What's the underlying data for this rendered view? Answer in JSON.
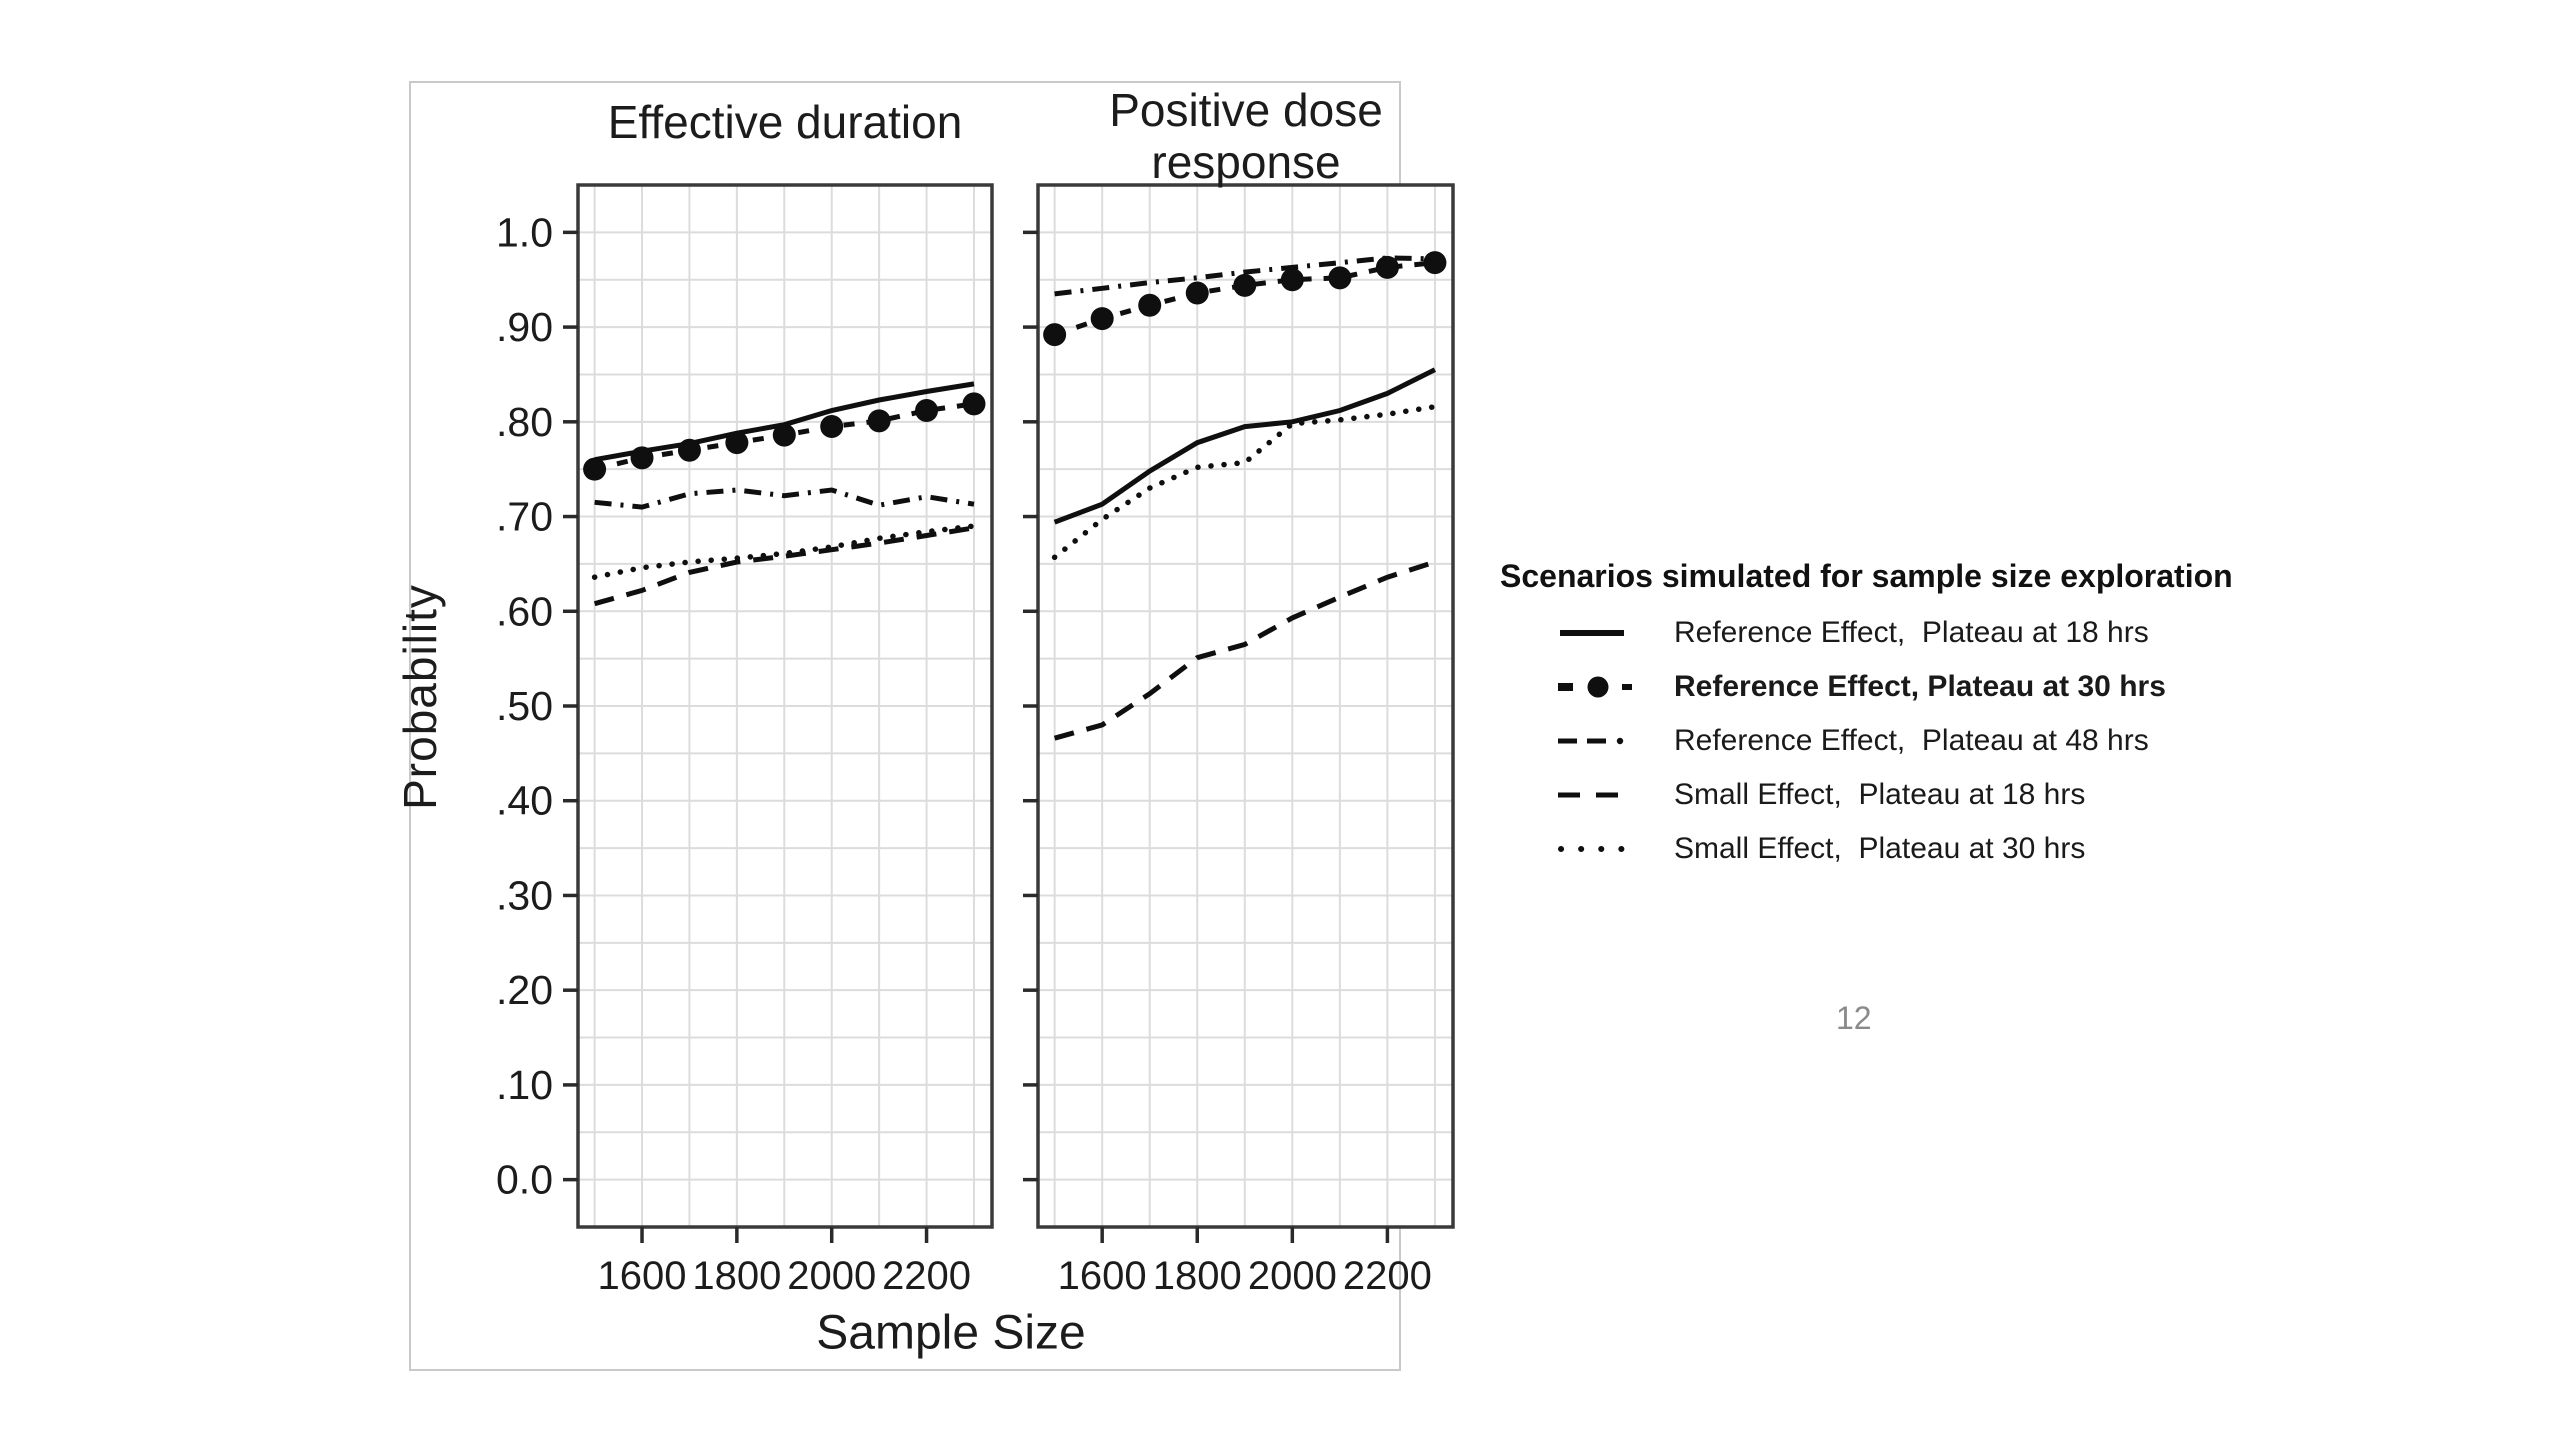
{
  "page": {
    "background": "#ffffff",
    "page_number": "12",
    "page_number_color": "#8a8a8a"
  },
  "figure": {
    "outer_box_border_color": "#c9c9c9",
    "plot_border_color": "#3a3a3a",
    "gridline_color": "#dcdcdc",
    "line_color": "#0f0f0f",
    "text_color": "#1c1c1c"
  },
  "legend": {
    "title": "Scenarios simulated for sample size exploration",
    "items": [
      {
        "label": "Reference Effect,  Plateau at 18 hrs",
        "style": "solid",
        "bold": false
      },
      {
        "label": "Reference Effect, Plateau at 30 hrs",
        "style": "dash-circle",
        "bold": true
      },
      {
        "label": "Reference Effect,  Plateau at 48 hrs",
        "style": "dash-dash-dot",
        "bold": false
      },
      {
        "label": "Small Effect,  Plateau at 18 hrs",
        "style": "long-dash",
        "bold": false
      },
      {
        "label": "Small Effect,  Plateau at 30 hrs",
        "style": "dotted",
        "bold": false
      }
    ]
  },
  "chart_data": {
    "type": "line",
    "xlabel": "Sample Size",
    "ylabel": "Probability",
    "x": [
      1500,
      1600,
      1700,
      1800,
      1900,
      2000,
      2100,
      2200,
      2300
    ],
    "xlim": [
      1465,
      2338
    ],
    "ylim": [
      -0.05,
      1.05
    ],
    "grid": {
      "on": true,
      "x_step": 100,
      "y_step": 0.05
    },
    "x_ticks": [
      {
        "label": "1600",
        "value": 1600
      },
      {
        "label": "1800",
        "value": 1800
      },
      {
        "label": "2000",
        "value": 2000
      },
      {
        "label": "2200",
        "value": 2200
      }
    ],
    "y_ticks": [
      {
        "label": "1.0",
        "value": 1.0
      },
      {
        "label": ".90",
        "value": 0.9
      },
      {
        "label": ".80",
        "value": 0.8
      },
      {
        "label": ".70",
        "value": 0.7
      },
      {
        "label": ".60",
        "value": 0.6
      },
      {
        "label": ".50",
        "value": 0.5
      },
      {
        "label": ".40",
        "value": 0.4
      },
      {
        "label": ".30",
        "value": 0.3
      },
      {
        "label": ".20",
        "value": 0.2
      },
      {
        "label": ".10",
        "value": 0.1
      },
      {
        "label": "0.0",
        "value": 0.0
      }
    ],
    "panels": [
      {
        "title_lines": [
          "Effective duration"
        ],
        "series": [
          {
            "name": "Reference Effect, Plateau at 18 hrs",
            "style": "solid",
            "values": [
              0.76,
              0.769,
              0.777,
              0.788,
              0.797,
              0.812,
              0.823,
              0.832,
              0.84
            ]
          },
          {
            "name": "Reference Effect, Plateau at 30 hrs",
            "style": "dash-circle",
            "values": [
              0.75,
              0.762,
              0.77,
              0.778,
              0.786,
              0.795,
              0.801,
              0.812,
              0.819
            ]
          },
          {
            "name": "Reference Effect, Plateau at 48 hrs",
            "style": "dash-dash-dot",
            "values": [
              0.715,
              0.71,
              0.724,
              0.728,
              0.722,
              0.728,
              0.712,
              0.721,
              0.713
            ]
          },
          {
            "name": "Small Effect, Plateau at 18 hrs",
            "style": "long-dash",
            "values": [
              0.608,
              0.622,
              0.641,
              0.652,
              0.658,
              0.665,
              0.672,
              0.68,
              0.688
            ]
          },
          {
            "name": "Small Effect, Plateau at 30 hrs",
            "style": "dotted",
            "values": [
              0.636,
              0.646,
              0.652,
              0.656,
              0.661,
              0.668,
              0.677,
              0.684,
              0.69
            ]
          }
        ]
      },
      {
        "title_lines": [
          "Positive dose",
          "response"
        ],
        "series": [
          {
            "name": "Reference Effect, Plateau at 18 hrs",
            "style": "solid",
            "values": [
              0.694,
              0.713,
              0.748,
              0.778,
              0.795,
              0.8,
              0.812,
              0.83,
              0.855
            ]
          },
          {
            "name": "Reference Effect, Plateau at 30 hrs",
            "style": "dash-circle",
            "values": [
              0.892,
              0.909,
              0.923,
              0.936,
              0.944,
              0.95,
              0.952,
              0.963,
              0.968
            ]
          },
          {
            "name": "Reference Effect, Plateau at 48 hrs",
            "style": "dash-dash-dot",
            "values": [
              0.935,
              0.941,
              0.947,
              0.952,
              0.958,
              0.963,
              0.968,
              0.973,
              0.972
            ]
          },
          {
            "name": "Small Effect, Plateau at 18 hrs",
            "style": "long-dash",
            "values": [
              0.466,
              0.48,
              0.513,
              0.551,
              0.565,
              0.593,
              0.615,
              0.636,
              0.652
            ]
          },
          {
            "name": "Small Effect, Plateau at 30 hrs",
            "style": "dotted",
            "values": [
              0.657,
              0.697,
              0.73,
              0.752,
              0.757,
              0.798,
              0.802,
              0.808,
              0.816
            ]
          }
        ]
      }
    ]
  }
}
